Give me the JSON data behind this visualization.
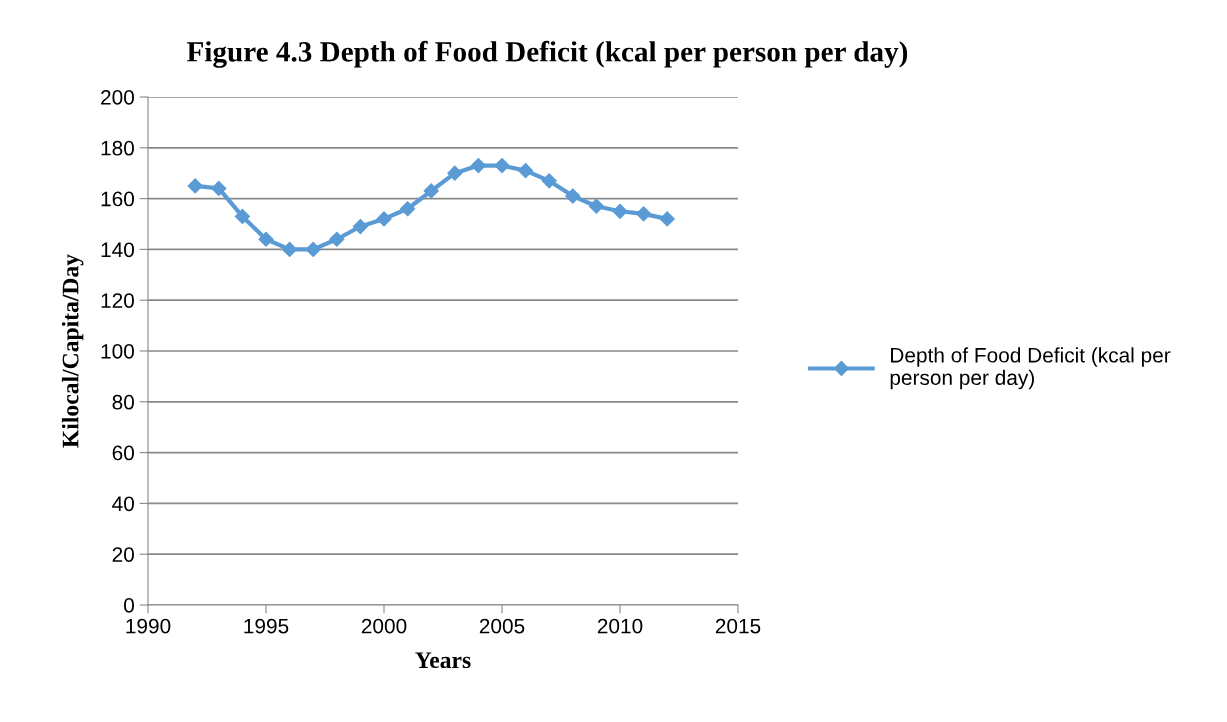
{
  "chart_data": {
    "type": "line",
    "title": "Figure 4.3 Depth of Food Deficit (kcal per person per day)",
    "xlabel": "Years",
    "ylabel": "Kilocal/Capita/Day",
    "x": [
      1992,
      1993,
      1994,
      1995,
      1996,
      1997,
      1998,
      1999,
      2000,
      2001,
      2002,
      2003,
      2004,
      2005,
      2006,
      2007,
      2008,
      2009,
      2010,
      2011,
      2012
    ],
    "series": [
      {
        "name": "Depth of Food Deficit (kcal per person per day)",
        "color": "#5b9bd5",
        "values": [
          165,
          164,
          153,
          144,
          140,
          140,
          144,
          149,
          152,
          156,
          163,
          170,
          173,
          173,
          171,
          167,
          161,
          157,
          155,
          154,
          152
        ]
      }
    ],
    "xlim": [
      1990,
      2015
    ],
    "xticks": [
      1990,
      1995,
      2000,
      2005,
      2010,
      2015
    ],
    "ylim": [
      0,
      200
    ],
    "yticks": [
      0,
      20,
      40,
      60,
      80,
      100,
      120,
      140,
      160,
      180,
      200
    ],
    "grid": "y",
    "legend": "right",
    "marker": "diamond",
    "line_style": "solid"
  }
}
